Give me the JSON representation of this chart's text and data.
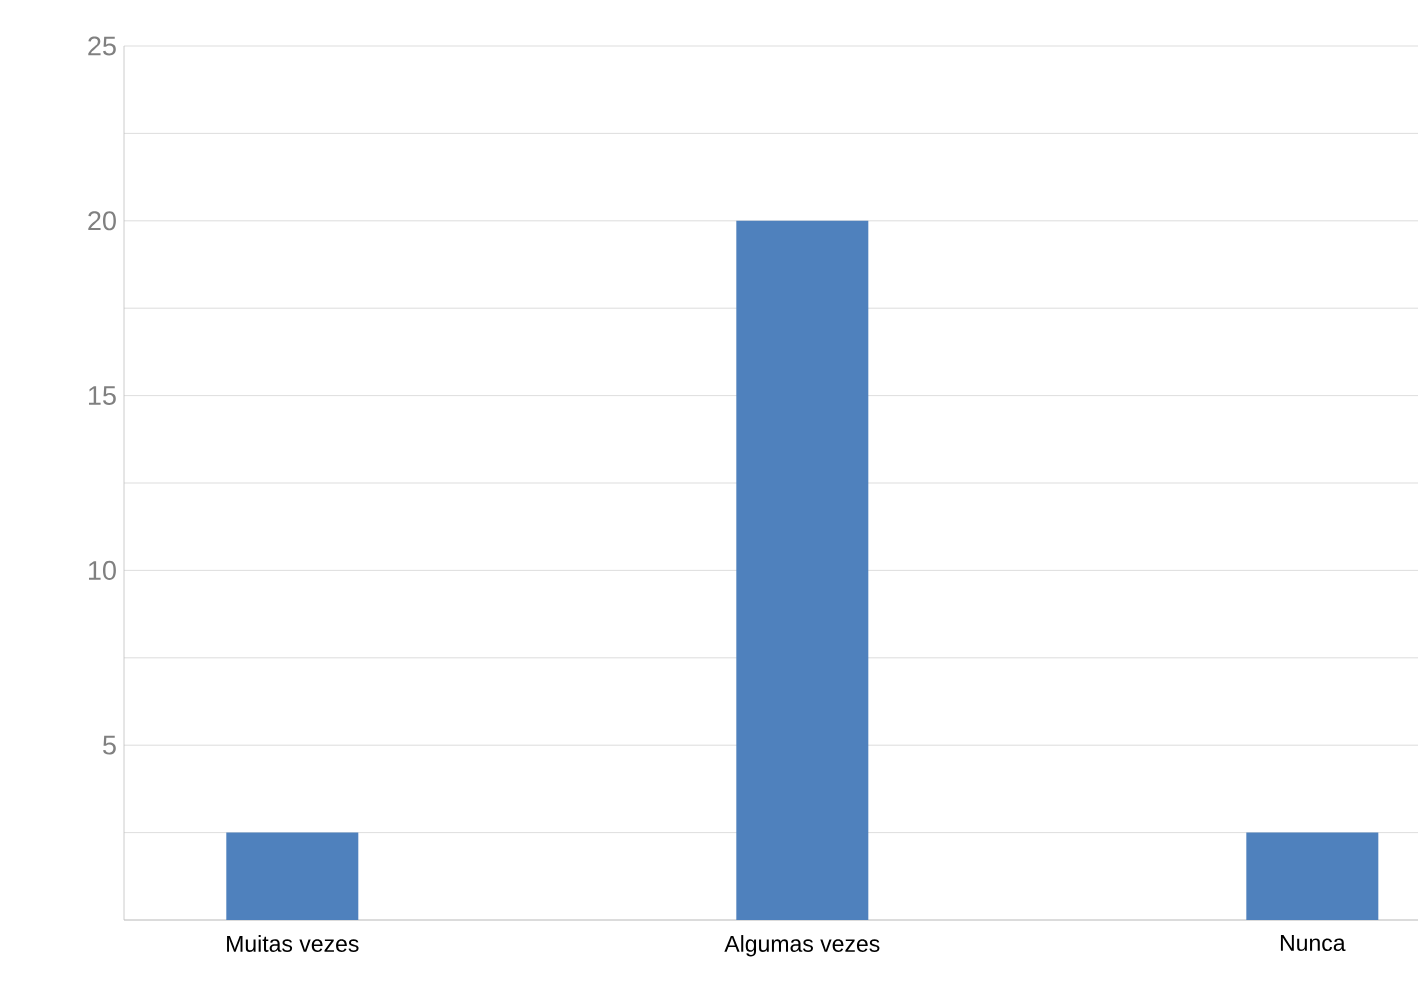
{
  "chart_data": {
    "type": "bar",
    "categories": [
      "Muitas vezes",
      "Algumas vezes",
      "Nunca"
    ],
    "values": [
      2.5,
      20,
      2.5
    ],
    "color": "#4f81bd",
    "ylim": [
      0,
      25
    ],
    "yticks": [
      {
        "value": 0,
        "label": null
      },
      {
        "value": 2.5,
        "label": null
      },
      5,
      {
        "value": 7.5,
        "label": null
      },
      10,
      {
        "value": 12.5,
        "label": null
      },
      15,
      {
        "value": 17.5,
        "label": null
      },
      20,
      {
        "value": 22.5,
        "label": null
      },
      25
    ],
    "grid": "y"
  }
}
